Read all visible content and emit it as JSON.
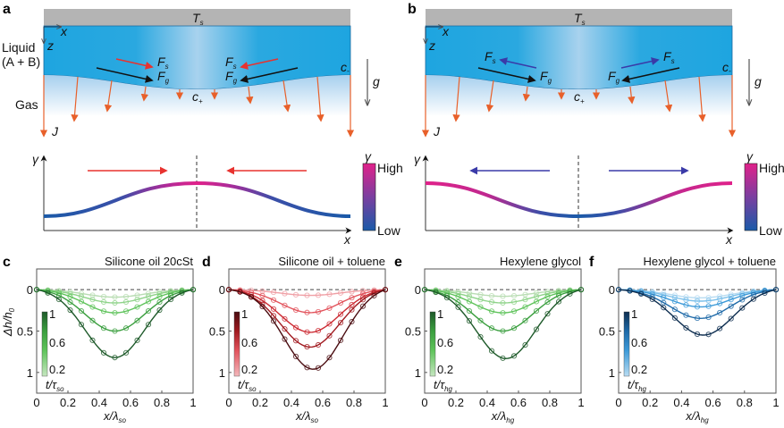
{
  "panel_labels": [
    "a",
    "b",
    "c",
    "d",
    "e",
    "f"
  ],
  "schematic": {
    "substrate_label": "T",
    "substrate_sub": "s",
    "axis_x": "x",
    "axis_z": "z",
    "liquid_label_line1": "Liquid",
    "liquid_label_line2": "(A + B)",
    "gas_label": "Gas",
    "flux_label": "J",
    "gravity_label": "g",
    "force_s": "F",
    "force_s_sub": "s",
    "force_g": "F",
    "force_g_sub": "g",
    "conc_minus": "c",
    "conc_minus_sub": "-",
    "conc_plus": "c",
    "conc_plus_sub": "+",
    "marangoni_color_a": "#e8322f",
    "marangoni_color_b": "#3a3aa8",
    "flux_color": "#e8602a",
    "liquid_color": "#1ea5e0",
    "substrate_color": "#b4b4b4"
  },
  "tension_profiles": {
    "y_label": "γ",
    "x_label": "x",
    "colorbar_title": "γ",
    "colorbar_high": "High",
    "colorbar_low": "Low",
    "color_high": "#e0218a",
    "color_low": "#1a5aa8",
    "a_shape": "peak-at-center",
    "b_shape": "trough-at-center"
  },
  "chart_data": [
    {
      "id": "c",
      "type": "line",
      "title": "Silicone oil 20cSt",
      "xlabel": "x/λ",
      "xlabel_sub": "so",
      "ylabel": "Δh/h",
      "ylabel_sub": "0",
      "xlim": [
        0,
        1
      ],
      "ylim": [
        1.25,
        -0.25
      ],
      "xticks": [
        "0",
        "0.2",
        "0.4",
        "0.6",
        "0.8",
        "1"
      ],
      "yticks": [
        "0",
        "0.5",
        "1"
      ],
      "colorbar_label": "t/τ",
      "colorbar_sub": "so",
      "colorbar_ticks": [
        "1",
        "0.6",
        "0.2"
      ],
      "palette": [
        "#b9ddb3",
        "#8fd38a",
        "#5ec35a",
        "#3b9f3f",
        "#1e5a2a"
      ],
      "series": [
        {
          "name": "t1",
          "depth": 0.09,
          "center": 0.5
        },
        {
          "name": "t2",
          "depth": 0.16,
          "center": 0.5
        },
        {
          "name": "t3",
          "depth": 0.28,
          "center": 0.5
        },
        {
          "name": "t4",
          "depth": 0.5,
          "center": 0.5
        },
        {
          "name": "t5",
          "depth": 0.82,
          "center": 0.5
        }
      ]
    },
    {
      "id": "d",
      "type": "line",
      "title": "Silicone oil + toluene",
      "xlabel": "x/λ",
      "xlabel_sub": "so",
      "ylabel": "",
      "ylabel_sub": "",
      "xlim": [
        0,
        1
      ],
      "ylim": [
        1.25,
        -0.25
      ],
      "xticks": [
        "0",
        "0.2",
        "0.4",
        "0.6",
        "0.8",
        "1"
      ],
      "yticks": [
        "0",
        "0.5",
        "1"
      ],
      "colorbar_label": "t/τ",
      "colorbar_sub": "so",
      "colorbar_ticks": [
        "1",
        "0.6",
        "0.2"
      ],
      "palette": [
        "#f0a0a6",
        "#e2535c",
        "#cc2a32",
        "#a11a20",
        "#4a0c10"
      ],
      "series": [
        {
          "name": "t1",
          "depth": 0.07,
          "center": 0.52
        },
        {
          "name": "t2",
          "depth": 0.28,
          "center": 0.52
        },
        {
          "name": "t3",
          "depth": 0.52,
          "center": 0.52
        },
        {
          "name": "t4",
          "depth": 0.7,
          "center": 0.52
        },
        {
          "name": "t5",
          "depth": 0.98,
          "center": 0.54
        }
      ]
    },
    {
      "id": "e",
      "type": "line",
      "title": "Hexylene glycol",
      "xlabel": "x/λ",
      "xlabel_sub": "hg",
      "ylabel": "",
      "ylabel_sub": "",
      "xlim": [
        0,
        1
      ],
      "ylim": [
        1.25,
        -0.25
      ],
      "xticks": [
        "0",
        "0.2",
        "0.4",
        "0.6",
        "0.8",
        "1"
      ],
      "yticks": [
        "0",
        "0.5",
        "1"
      ],
      "colorbar_label": "t/τ",
      "colorbar_sub": "hg",
      "colorbar_ticks": [
        "1",
        "0.6",
        "0.2"
      ],
      "palette": [
        "#b9ddb3",
        "#8fd38a",
        "#5ec35a",
        "#3b9f3f",
        "#1e5a2a"
      ],
      "series": [
        {
          "name": "t1",
          "depth": 0.08,
          "center": 0.5
        },
        {
          "name": "t2",
          "depth": 0.16,
          "center": 0.5
        },
        {
          "name": "t3",
          "depth": 0.28,
          "center": 0.5
        },
        {
          "name": "t4",
          "depth": 0.5,
          "center": 0.5
        },
        {
          "name": "t5",
          "depth": 0.84,
          "center": 0.52
        }
      ]
    },
    {
      "id": "f",
      "type": "line",
      "title": "Hexylene glycol + toluene",
      "xlabel": "x/λ",
      "xlabel_sub": "hg",
      "ylabel": "",
      "ylabel_sub": "",
      "xlim": [
        0,
        1
      ],
      "ylim": [
        1.25,
        -0.25
      ],
      "xticks": [
        "0",
        "0.2",
        "0.4",
        "0.6",
        "0.8",
        "1"
      ],
      "yticks": [
        "0",
        "0.5",
        "1"
      ],
      "colorbar_label": "t/τ",
      "colorbar_sub": "hg",
      "colorbar_ticks": [
        "1",
        "0.6",
        "0.2"
      ],
      "palette": [
        "#b8dcf2",
        "#7cc0ea",
        "#3c9ad8",
        "#1e6aa8",
        "#0e2e50"
      ],
      "series": [
        {
          "name": "t1",
          "depth": 0.1,
          "center": 0.52
        },
        {
          "name": "t2",
          "depth": 0.14,
          "center": 0.52
        },
        {
          "name": "t3",
          "depth": 0.21,
          "center": 0.52
        },
        {
          "name": "t4",
          "depth": 0.35,
          "center": 0.52
        },
        {
          "name": "t5",
          "depth": 0.56,
          "center": 0.54
        }
      ]
    }
  ]
}
